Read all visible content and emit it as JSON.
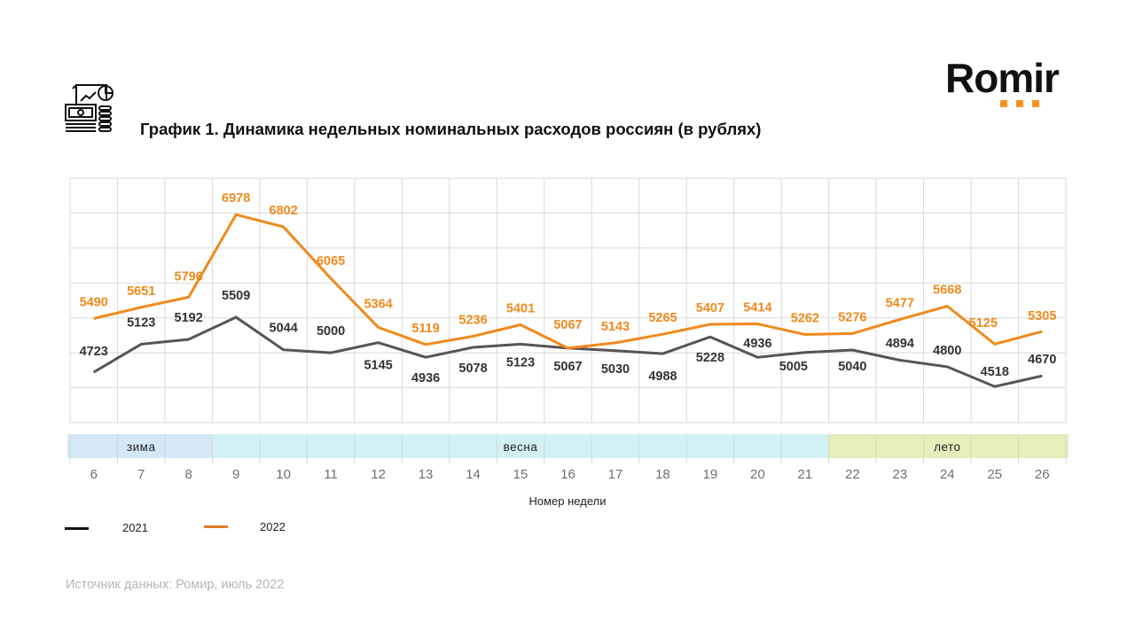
{
  "logo": {
    "text": "Romir",
    "dot_color": "#f7931e"
  },
  "icon": "finance-report-icon",
  "title": "График 1. Динамика недельных номинальных расходов россиян (в рублях)",
  "source": "Источник данных: Ромир, июль 2022",
  "chart_data": {
    "type": "line",
    "title": "График 1. Динамика недельных номинальных расходов россиян (в рублях)",
    "xlabel": "Номер недели",
    "ylabel": "",
    "x": [
      "6",
      "7",
      "8",
      "9",
      "10",
      "11",
      "12",
      "13",
      "14",
      "15",
      "16",
      "17",
      "18",
      "19",
      "20",
      "21",
      "22",
      "23",
      "24",
      "25",
      "26"
    ],
    "ylim": [
      4000,
      7500
    ],
    "y_grid_step": 500,
    "grid": true,
    "y_tick_labels_visible": false,
    "legend_position": "bottom-left",
    "series": [
      {
        "name": "2021",
        "color": "#555555",
        "legend_color": "#111111",
        "label_color": "#333333",
        "values": [
          4723,
          5123,
          5192,
          5509,
          5044,
          5000,
          5145,
          4936,
          5078,
          5123,
          5067,
          5030,
          4988,
          5228,
          4936,
          5005,
          5040,
          4894,
          4800,
          4518,
          4670
        ]
      },
      {
        "name": "2022",
        "color": "#f08a1c",
        "legend_color": "#e07b24",
        "label_color": "#f08a1c",
        "values": [
          5490,
          5651,
          5796,
          6978,
          6802,
          6065,
          5364,
          5119,
          5236,
          5401,
          5067,
          5143,
          5265,
          5407,
          5414,
          5262,
          5276,
          5477,
          5668,
          5125,
          5305
        ]
      }
    ],
    "seasons": [
      {
        "label": "зима",
        "from": "6",
        "to": "8",
        "color": "#d4e8f8"
      },
      {
        "label": "весна",
        "from": "9",
        "to": "21",
        "color": "#d2f1f4"
      },
      {
        "label": "лето",
        "from": "22",
        "to": "26",
        "color": "#e6eebb"
      }
    ]
  }
}
